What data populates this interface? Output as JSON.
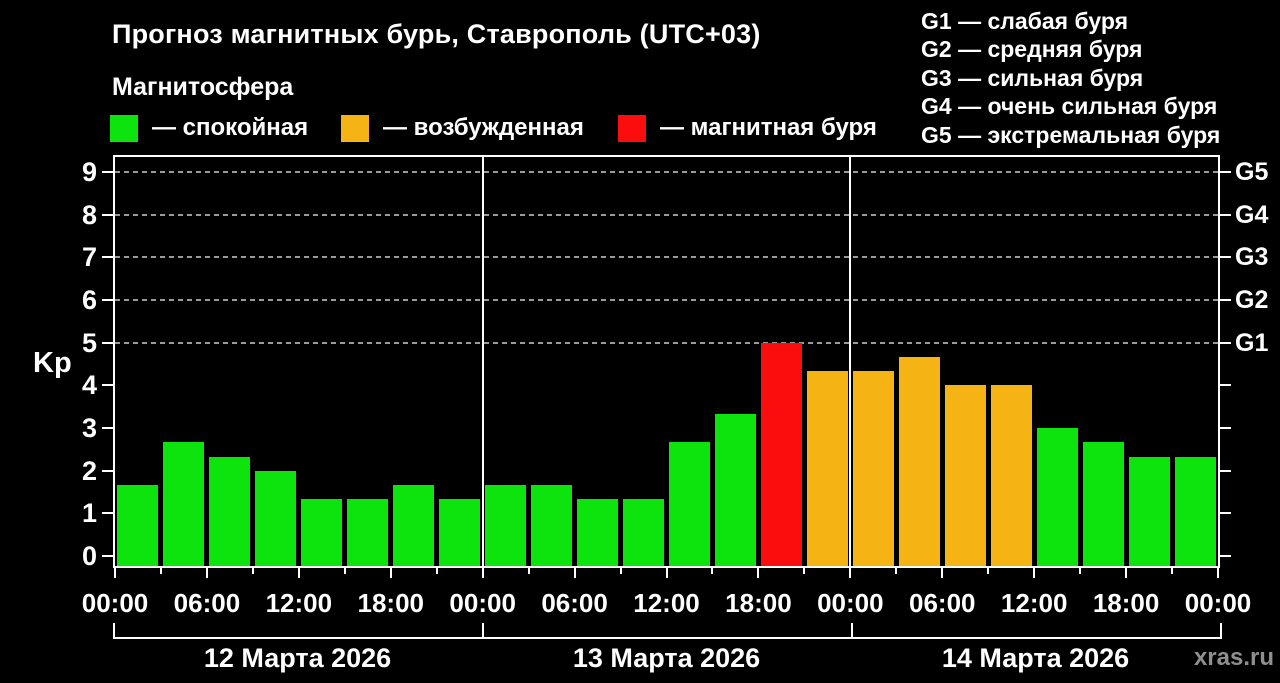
{
  "header": {
    "title": "Прогноз магнитных бурь, Ставрополь (UTC+03)",
    "subtitle": "Магнитосфера",
    "legend": [
      {
        "key": "quiet",
        "label": "— спокойная"
      },
      {
        "key": "active",
        "label": "— возбужденная"
      },
      {
        "key": "storm",
        "label": "— магнитная буря"
      }
    ],
    "storm_scale": [
      "G1 — слабая буря",
      "G2 — средняя буря",
      "G3 — сильная буря",
      "G4 — очень сильная буря",
      "G5 — экстремальная буря"
    ]
  },
  "colors": {
    "quiet": "#0de30d",
    "active": "#f5b413",
    "storm": "#fb0d0d",
    "axis": "#ffffff",
    "grid": "#9a9a9a",
    "watermark": "#8f8f8f",
    "background": "#000000"
  },
  "chart_data": {
    "type": "bar",
    "title": "Прогноз магнитных бурь, Ставрополь (UTC+03)",
    "ylabel": "Kp",
    "ylim": [
      0,
      9
    ],
    "y_ticks": [
      0,
      1,
      2,
      3,
      4,
      5,
      6,
      7,
      8,
      9
    ],
    "grid_kp": [
      5,
      6,
      7,
      8,
      9
    ],
    "right_labels": [
      {
        "kp": 5,
        "label": "G1"
      },
      {
        "kp": 6,
        "label": "G2"
      },
      {
        "kp": 7,
        "label": "G3"
      },
      {
        "kp": 8,
        "label": "G4"
      },
      {
        "kp": 9,
        "label": "G5"
      }
    ],
    "x_tick_labels": [
      "00:00",
      "06:00",
      "12:00",
      "18:00",
      "00:00",
      "06:00",
      "12:00",
      "18:00",
      "00:00",
      "06:00",
      "12:00",
      "18:00",
      "00:00"
    ],
    "day_labels": [
      "12 Марта 2026",
      "13 Марта 2026",
      "14 Марта 2026"
    ],
    "bars_per_day": 8,
    "hours_per_bar": 3,
    "bars": [
      {
        "kp": 1.67,
        "state": "quiet"
      },
      {
        "kp": 2.67,
        "state": "quiet"
      },
      {
        "kp": 2.33,
        "state": "quiet"
      },
      {
        "kp": 2.0,
        "state": "quiet"
      },
      {
        "kp": 1.33,
        "state": "quiet"
      },
      {
        "kp": 1.33,
        "state": "quiet"
      },
      {
        "kp": 1.67,
        "state": "quiet"
      },
      {
        "kp": 1.33,
        "state": "quiet"
      },
      {
        "kp": 1.67,
        "state": "quiet"
      },
      {
        "kp": 1.67,
        "state": "quiet"
      },
      {
        "kp": 1.33,
        "state": "quiet"
      },
      {
        "kp": 1.33,
        "state": "quiet"
      },
      {
        "kp": 2.67,
        "state": "quiet"
      },
      {
        "kp": 3.33,
        "state": "quiet"
      },
      {
        "kp": 5.0,
        "state": "storm"
      },
      {
        "kp": 4.33,
        "state": "active"
      },
      {
        "kp": 4.33,
        "state": "active"
      },
      {
        "kp": 4.67,
        "state": "active"
      },
      {
        "kp": 4.0,
        "state": "active"
      },
      {
        "kp": 4.0,
        "state": "active"
      },
      {
        "kp": 3.0,
        "state": "quiet"
      },
      {
        "kp": 2.67,
        "state": "quiet"
      },
      {
        "kp": 2.33,
        "state": "quiet"
      },
      {
        "kp": 2.33,
        "state": "quiet"
      }
    ]
  },
  "watermark": "xras.ru"
}
